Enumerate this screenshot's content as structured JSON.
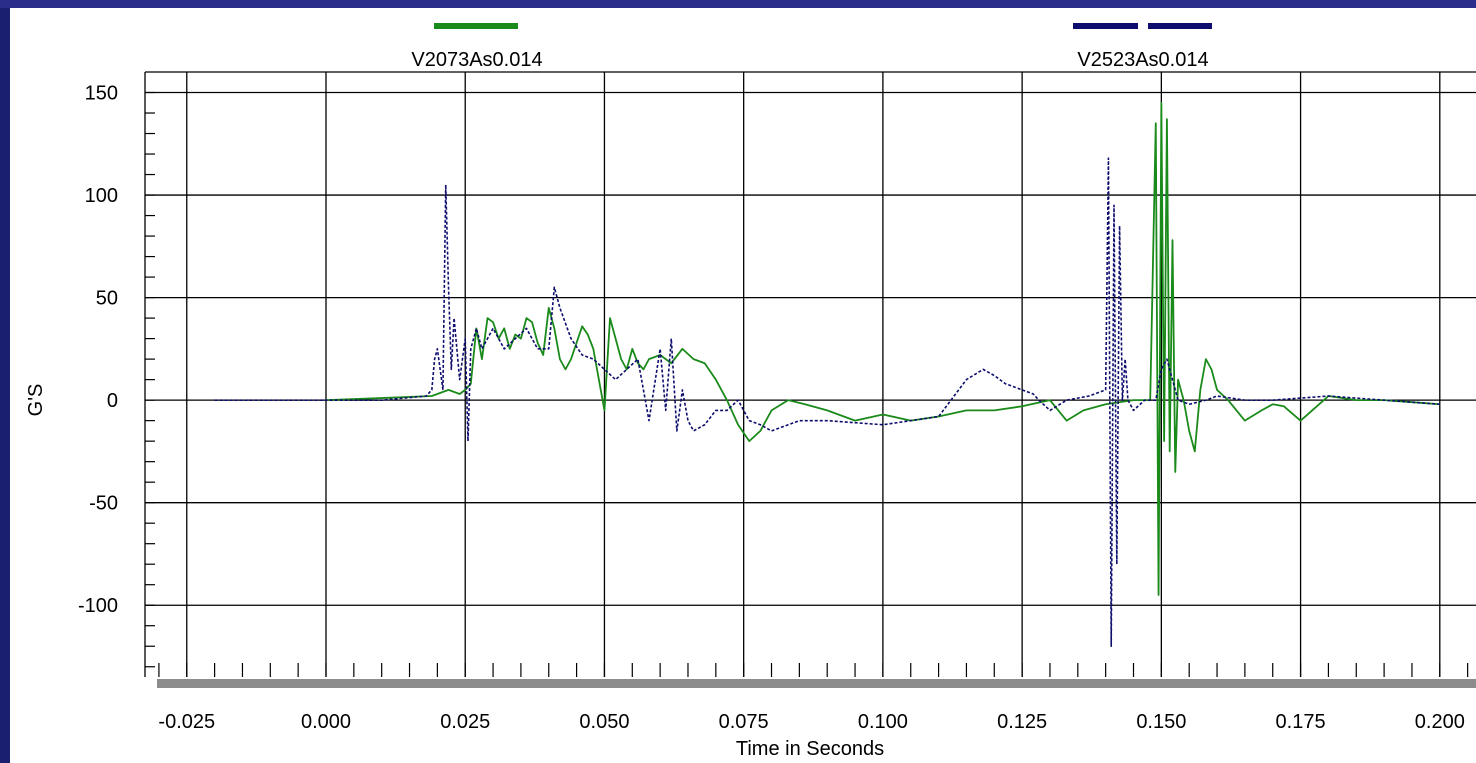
{
  "colors": {
    "frame_left": "#1a1f6e",
    "frame_top": "#2a2e8a",
    "plot_background": "#ffffff",
    "grid": "#000000",
    "bottom_bar": "#8c8c8c",
    "series_green": "#1a8a1a",
    "series_navy": "#0d0d6e"
  },
  "chart_data": {
    "type": "line",
    "title": "",
    "xlabel": "Time in Seconds",
    "ylabel": "G'S",
    "xlim": [
      -0.0325,
      0.2065
    ],
    "ylim": [
      -135,
      160
    ],
    "grid": true,
    "legend_position": "top",
    "x_ticks": [
      -0.025,
      0.0,
      0.025,
      0.05,
      0.075,
      0.1,
      0.125,
      0.15,
      0.175,
      0.2
    ],
    "x_tick_labels": [
      "-0.025",
      "0.000",
      "0.025",
      "0.050",
      "0.075",
      "0.100",
      "0.125",
      "0.150",
      "0.175",
      "0.200"
    ],
    "y_ticks": [
      -100,
      -50,
      0,
      50,
      100,
      150
    ],
    "y_tick_labels": [
      "-100",
      "-50",
      "0",
      "50",
      "100",
      "150"
    ],
    "series": [
      {
        "name": "V2073As0.014",
        "color": "#1a8a1a",
        "style": "solid",
        "x": [
          0.0,
          0.01,
          0.019,
          0.022,
          0.024,
          0.025,
          0.026,
          0.027,
          0.028,
          0.029,
          0.03,
          0.031,
          0.032,
          0.033,
          0.034,
          0.035,
          0.036,
          0.037,
          0.038,
          0.039,
          0.04,
          0.041,
          0.042,
          0.043,
          0.044,
          0.045,
          0.046,
          0.047,
          0.048,
          0.049,
          0.05,
          0.051,
          0.052,
          0.053,
          0.054,
          0.055,
          0.056,
          0.057,
          0.058,
          0.06,
          0.062,
          0.064,
          0.066,
          0.068,
          0.07,
          0.072,
          0.074,
          0.076,
          0.078,
          0.08,
          0.083,
          0.086,
          0.09,
          0.095,
          0.1,
          0.105,
          0.11,
          0.115,
          0.12,
          0.125,
          0.13,
          0.133,
          0.136,
          0.14,
          0.145,
          0.148,
          0.149,
          0.1495,
          0.15,
          0.1505,
          0.151,
          0.1515,
          0.152,
          0.1525,
          0.153,
          0.154,
          0.155,
          0.156,
          0.157,
          0.158,
          0.159,
          0.16,
          0.162,
          0.165,
          0.168,
          0.17,
          0.172,
          0.175,
          0.18,
          0.185,
          0.19,
          0.195,
          0.2
        ],
        "values": [
          0,
          1,
          2,
          5,
          3,
          5,
          8,
          35,
          20,
          40,
          38,
          30,
          35,
          25,
          32,
          30,
          40,
          38,
          28,
          22,
          45,
          35,
          20,
          15,
          20,
          28,
          36,
          32,
          25,
          10,
          -5,
          40,
          30,
          20,
          15,
          25,
          18,
          15,
          20,
          22,
          18,
          25,
          20,
          18,
          10,
          0,
          -12,
          -20,
          -15,
          -5,
          0,
          -2,
          -5,
          -10,
          -7,
          -10,
          -8,
          -5,
          -5,
          -3,
          0,
          -10,
          -5,
          -2,
          0,
          0,
          135,
          -95,
          145,
          -20,
          137,
          -25,
          78,
          -35,
          10,
          0,
          -15,
          -25,
          5,
          20,
          15,
          5,
          0,
          -10,
          -5,
          -2,
          -3,
          -10,
          2,
          0,
          0,
          -1,
          -2
        ]
      },
      {
        "name": "V2523As0.014",
        "color": "#0d0d6e",
        "style": "dashed",
        "x": [
          -0.02,
          0.0,
          0.01,
          0.018,
          0.019,
          0.0195,
          0.02,
          0.021,
          0.0215,
          0.022,
          0.0225,
          0.023,
          0.024,
          0.025,
          0.0255,
          0.026,
          0.027,
          0.028,
          0.029,
          0.03,
          0.032,
          0.034,
          0.036,
          0.038,
          0.04,
          0.041,
          0.042,
          0.044,
          0.046,
          0.048,
          0.05,
          0.052,
          0.054,
          0.056,
          0.058,
          0.06,
          0.061,
          0.062,
          0.063,
          0.064,
          0.065,
          0.066,
          0.068,
          0.07,
          0.072,
          0.074,
          0.076,
          0.078,
          0.08,
          0.085,
          0.09,
          0.1,
          0.11,
          0.115,
          0.118,
          0.12,
          0.122,
          0.125,
          0.127,
          0.128,
          0.13,
          0.133,
          0.137,
          0.14,
          0.1405,
          0.141,
          0.1415,
          0.142,
          0.1425,
          0.143,
          0.1435,
          0.144,
          0.145,
          0.147,
          0.149,
          0.15,
          0.151,
          0.152,
          0.153,
          0.155,
          0.158,
          0.16,
          0.165,
          0.17,
          0.18,
          0.19,
          0.2
        ],
        "values": [
          0,
          0,
          0,
          2,
          5,
          20,
          25,
          5,
          105,
          55,
          15,
          40,
          10,
          30,
          -20,
          25,
          35,
          25,
          30,
          35,
          25,
          30,
          35,
          25,
          25,
          55,
          45,
          30,
          22,
          20,
          15,
          10,
          15,
          20,
          -10,
          25,
          -5,
          30,
          -15,
          5,
          -10,
          -15,
          -12,
          -5,
          -5,
          0,
          -10,
          -12,
          -15,
          -10,
          -10,
          -12,
          -8,
          10,
          15,
          12,
          8,
          5,
          3,
          0,
          -5,
          0,
          2,
          5,
          118,
          -120,
          95,
          -80,
          85,
          0,
          20,
          0,
          -5,
          0,
          0,
          15,
          20,
          10,
          0,
          -2,
          0,
          2,
          0,
          0,
          2,
          0,
          -2
        ]
      }
    ]
  }
}
